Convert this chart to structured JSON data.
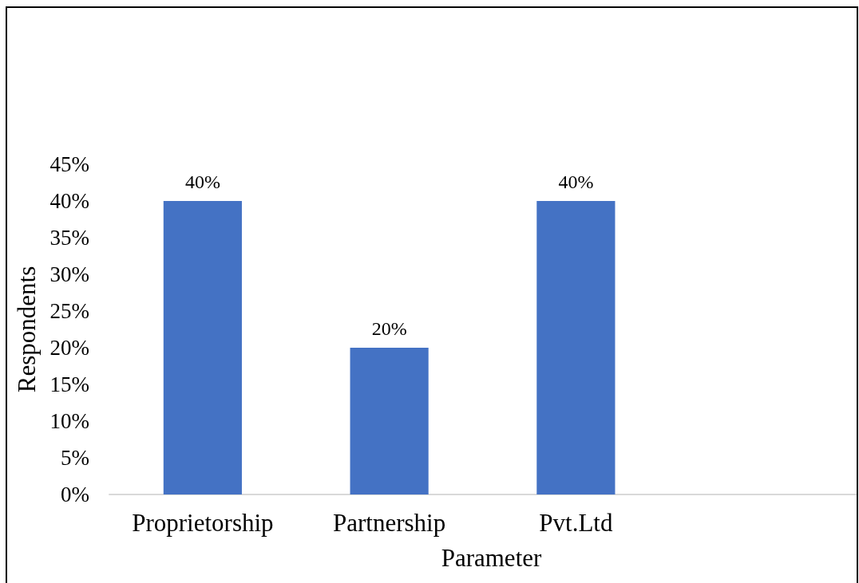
{
  "chart_data": {
    "type": "bar",
    "categories": [
      "Proprietorship",
      "Partnership",
      "Pvt.Ltd",
      null
    ],
    "values": [
      40,
      20,
      40,
      null
    ],
    "color": "#4472c4",
    "value_labels": [
      "40%",
      "20%",
      "40%",
      null
    ],
    "xlabel": "Parameter",
    "ylabel": "Respondents",
    "ylim": [
      0,
      45
    ],
    "yticks": [
      {
        "value": 0,
        "label": "0%"
      },
      {
        "value": 5,
        "label": "5%"
      },
      {
        "value": 10,
        "label": "10%"
      },
      {
        "value": 15,
        "label": "15%"
      },
      {
        "value": 20,
        "label": "20%"
      },
      {
        "value": 25,
        "label": "25%"
      },
      {
        "value": 30,
        "label": "30%"
      },
      {
        "value": 35,
        "label": "35%"
      },
      {
        "value": 40,
        "label": "40%"
      },
      {
        "value": 45,
        "label": "45%"
      }
    ]
  }
}
